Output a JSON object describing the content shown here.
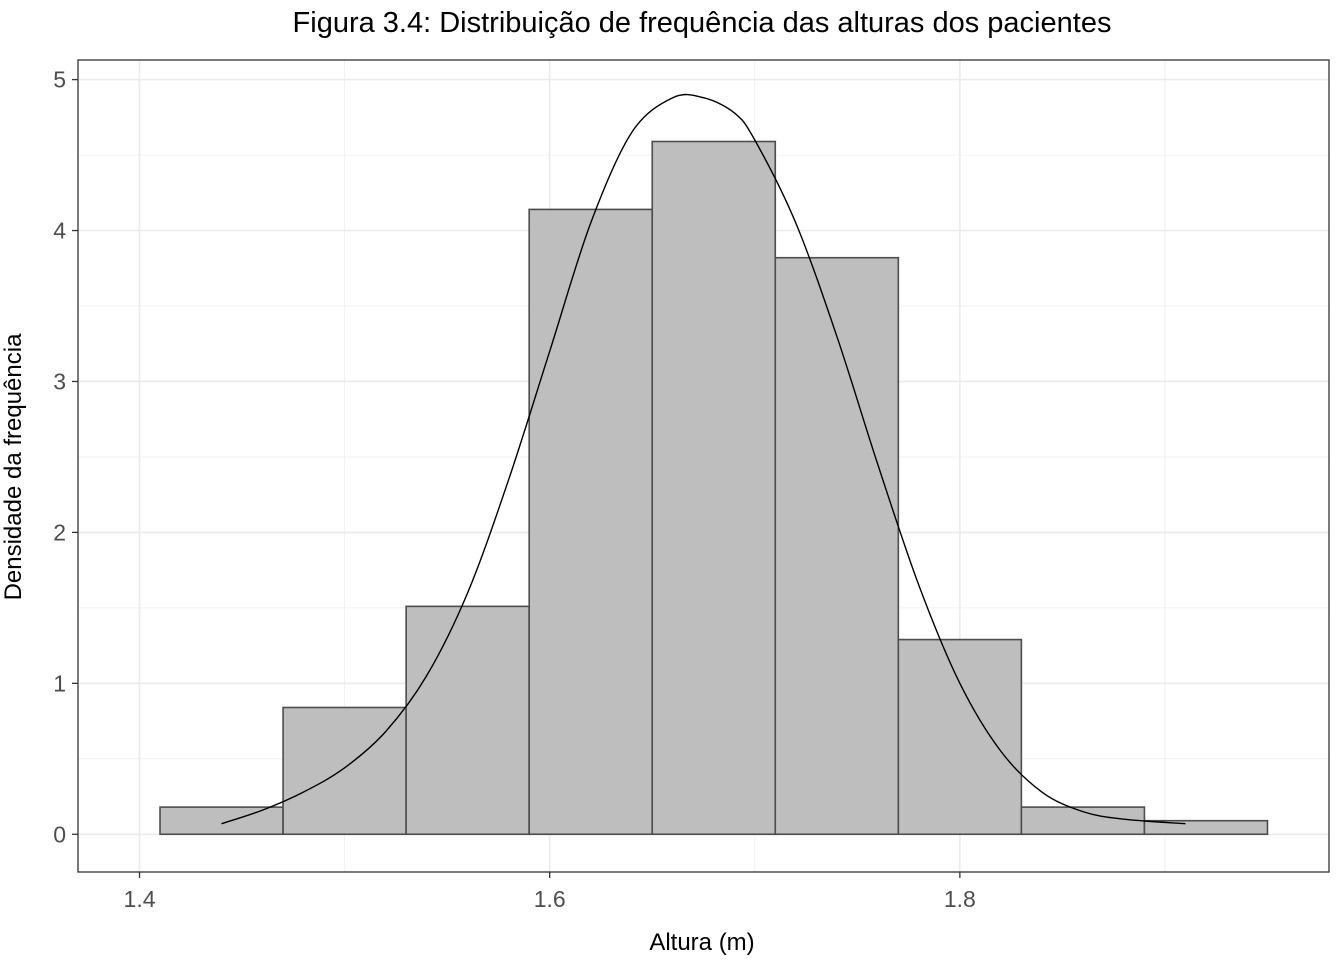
{
  "chart_data": {
    "type": "bar",
    "title": "Figura 3.4: Distribuição de frequência das alturas dos pacientes",
    "xlabel": "Altura (m)",
    "ylabel": "Densidade da frequência",
    "xlim": [
      1.37,
      1.98
    ],
    "ylim": [
      -0.25,
      5.13
    ],
    "xticks": [
      1.4,
      1.6,
      1.8
    ],
    "xtick_labels": [
      "1.4",
      "1.6",
      "1.8"
    ],
    "yticks": [
      0,
      1,
      2,
      3,
      4,
      5
    ],
    "ytick_labels": [
      "0",
      "1",
      "2",
      "3",
      "4",
      "5"
    ],
    "grid": true,
    "bar_fill": "#bebebe",
    "bar_stroke": "#4d4d4d",
    "bins": [
      {
        "x0": 1.41,
        "x1": 1.47,
        "density": 0.18
      },
      {
        "x0": 1.47,
        "x1": 1.53,
        "density": 0.84
      },
      {
        "x0": 1.53,
        "x1": 1.59,
        "density": 1.51
      },
      {
        "x0": 1.59,
        "x1": 1.65,
        "density": 4.14
      },
      {
        "x0": 1.65,
        "x1": 1.71,
        "density": 4.59
      },
      {
        "x0": 1.71,
        "x1": 1.77,
        "density": 3.82
      },
      {
        "x0": 1.77,
        "x1": 1.83,
        "density": 1.29
      },
      {
        "x0": 1.83,
        "x1": 1.89,
        "density": 0.18
      },
      {
        "x0": 1.89,
        "x1": 1.95,
        "density": 0.09
      }
    ],
    "density_curve": {
      "type": "line",
      "x": [
        1.44,
        1.46,
        1.48,
        1.5,
        1.52,
        1.54,
        1.56,
        1.58,
        1.6,
        1.62,
        1.64,
        1.66,
        1.675,
        1.69,
        1.7,
        1.72,
        1.74,
        1.76,
        1.78,
        1.8,
        1.82,
        1.84,
        1.86,
        1.88,
        1.91
      ],
      "y": [
        0.07,
        0.16,
        0.28,
        0.44,
        0.68,
        1.05,
        1.6,
        2.35,
        3.2,
        4.05,
        4.65,
        4.88,
        4.88,
        4.78,
        4.6,
        4.05,
        3.3,
        2.45,
        1.65,
        1.0,
        0.55,
        0.28,
        0.15,
        0.1,
        0.07
      ],
      "stroke": "#000000"
    }
  }
}
